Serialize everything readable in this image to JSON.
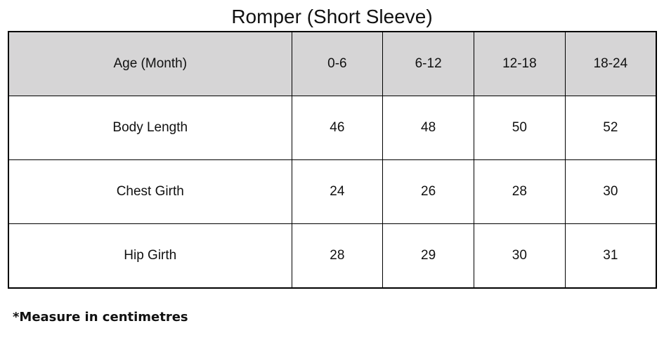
{
  "title": "Romper (Short Sleeve)",
  "table": {
    "header": [
      "Age (Month)",
      "0-6",
      "6-12",
      "12-18",
      "18-24"
    ],
    "rows": [
      [
        "Body Length",
        "46",
        "48",
        "50",
        "52"
      ],
      [
        "Chest Girth",
        "24",
        "26",
        "28",
        "30"
      ],
      [
        "Hip Girth",
        "28",
        "29",
        "30",
        "31"
      ]
    ]
  },
  "note": "*Measure in centimetres",
  "colors": {
    "header_bg": "#d6d5d6",
    "border": "#000000"
  }
}
